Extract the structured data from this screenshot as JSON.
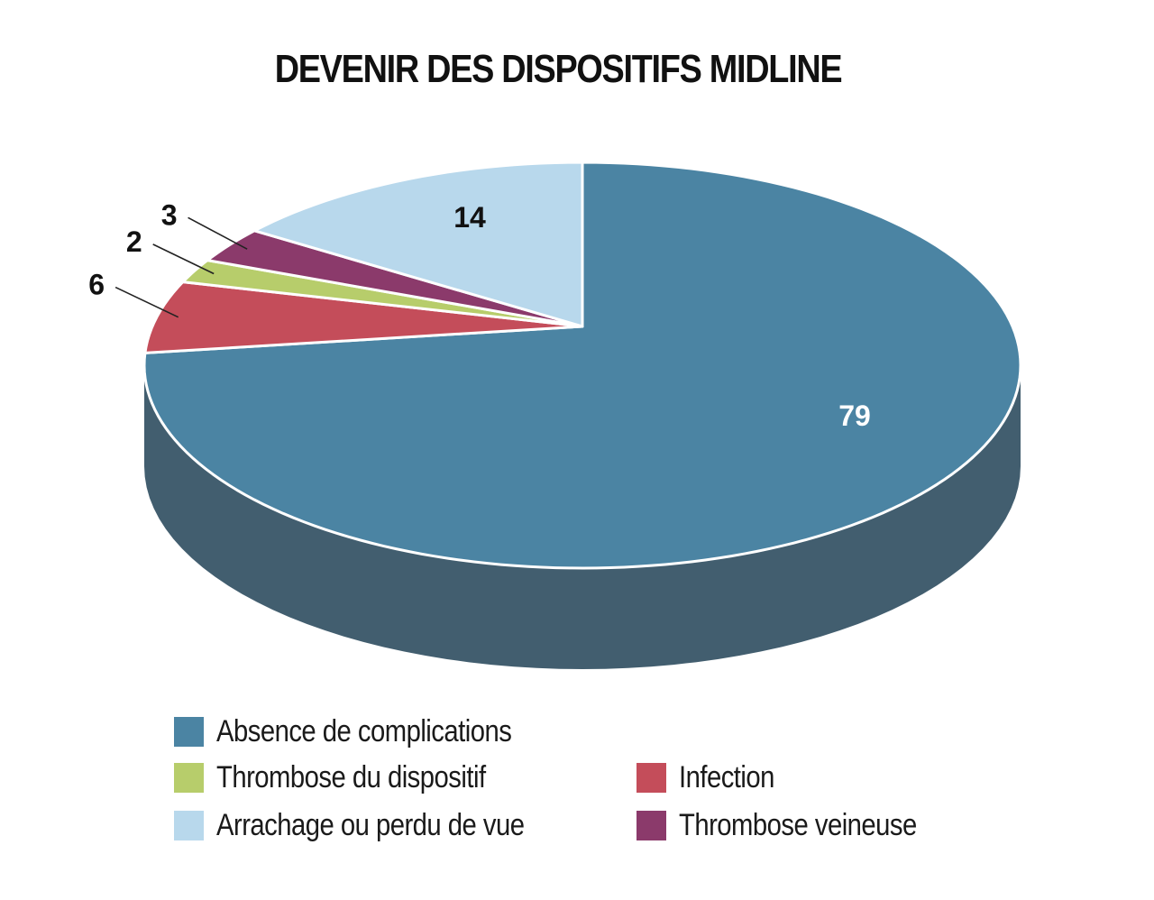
{
  "chart_data": {
    "type": "pie",
    "title": "DEVENIR DES DISPOSITIFS MIDLINE",
    "slices": [
      {
        "name": "Absence de complications",
        "value": 79,
        "label": "79",
        "color": "#4b84a3",
        "side_color": "#425e6f",
        "label_color": "#ffffff"
      },
      {
        "name": "Infection",
        "value": 6,
        "label": "6",
        "color": "#c44d5a",
        "side_color": "#8f3a43",
        "label_color": "#111111"
      },
      {
        "name": "Thrombose du dispositif",
        "value": 2,
        "label": "2",
        "color": "#b7cd6b",
        "side_color": "#8a9a50",
        "label_color": "#111111"
      },
      {
        "name": "Thrombose veineuse",
        "value": 3,
        "label": "3",
        "color": "#8b3a6b",
        "side_color": "#652a4e",
        "label_color": "#111111"
      },
      {
        "name": "Arrachage ou perdu de vue",
        "value": 14,
        "label": "14",
        "color": "#b8d8ec",
        "side_color": "#8aa6b8",
        "label_color": "#111111"
      }
    ],
    "legend": [
      {
        "name": "Absence de complications",
        "color": "#4b84a3"
      },
      {
        "name": "Thrombose du dispositif",
        "color": "#b7cd6b"
      },
      {
        "name": "Arrachage ou perdu de vue",
        "color": "#b8d8ec"
      },
      {
        "name": "Infection",
        "color": "#c44d5a"
      },
      {
        "name": "Thrombose veineuse",
        "color": "#8b3a6b"
      }
    ],
    "legend_placement": "bottom",
    "style": "3d"
  }
}
